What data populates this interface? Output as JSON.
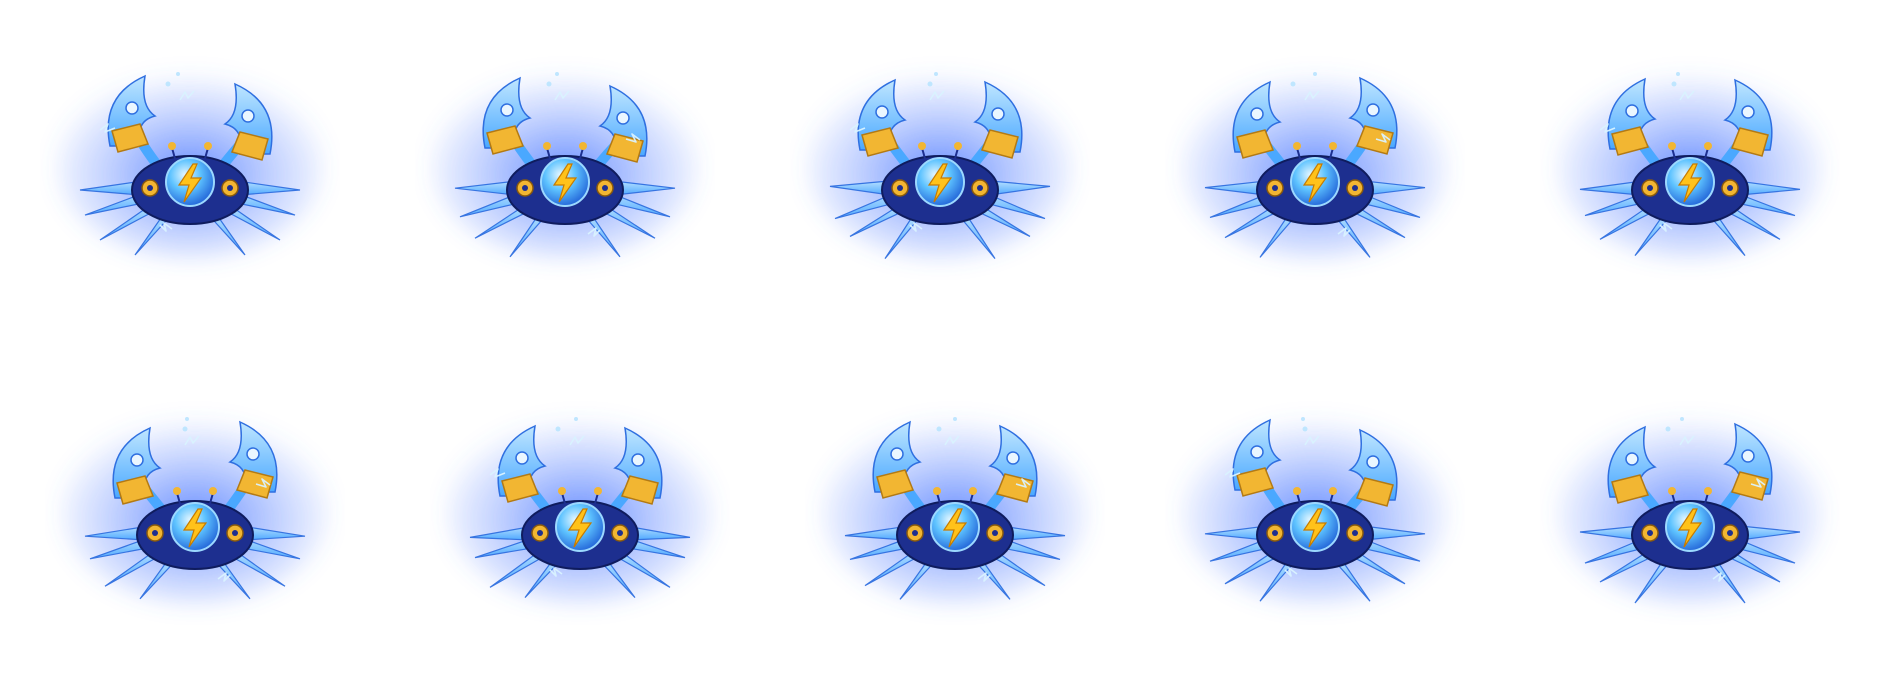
{
  "sprite_sheet": {
    "subject": "electric-crab",
    "frame_count": 10,
    "rows": 2,
    "columns": 5,
    "colors": {
      "background": "#ffffff",
      "glow": "#4f7bff",
      "shell": "#1d2f8f",
      "claw": "#4aa8ff",
      "claw_highlight": "#bfe6ff",
      "gold": "#f2b632",
      "orb": "#5ec3ff",
      "bolt": "#ffc21a",
      "spark": "#d9f2ff"
    }
  }
}
